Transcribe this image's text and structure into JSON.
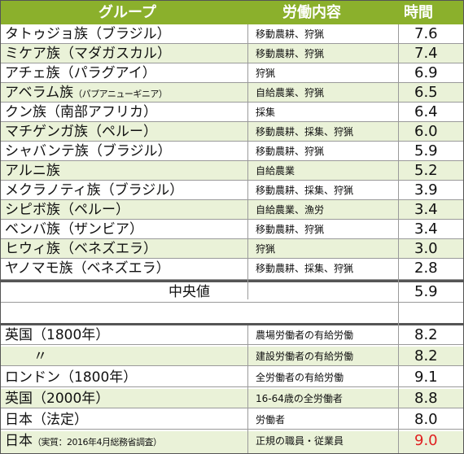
{
  "header": {
    "col1": "グループ",
    "col2": "労働内容",
    "col3": "時間"
  },
  "groups": [
    {
      "name": "タトゥジョ族（ブラジル）",
      "work": "移動農耕、狩猟",
      "hours": "7.6"
    },
    {
      "name": "ミケア族（マダガスカル）",
      "work": "移動農耕、狩猟",
      "hours": "7.4"
    },
    {
      "name": "アチェ族（パラグアイ）",
      "work": "狩猟",
      "hours": "6.9"
    },
    {
      "name": "アベラム族",
      "name_note": "（パプアニューギニア）",
      "work": "自給農業、狩猟",
      "hours": "6.5"
    },
    {
      "name": "クン族（南部アフリカ）",
      "work": "採集",
      "hours": "6.4"
    },
    {
      "name": "マチゲンガ族（ペルー）",
      "work": "移動農耕、採集、狩猟",
      "hours": "6.0"
    },
    {
      "name": "シャバンテ族（ブラジル）",
      "work": "移動農耕、狩猟",
      "hours": "5.9"
    },
    {
      "name": "アルニ族",
      "work": "自給農業",
      "hours": "5.2"
    },
    {
      "name": "メクラノティ族（ブラジル）",
      "work": "移動農耕、採集、狩猟",
      "hours": "3.9"
    },
    {
      "name": "シピボ族（ペルー）",
      "work": "自給農業、漁労",
      "hours": "3.4"
    },
    {
      "name": "ベンバ族（ザンビア）",
      "work": "移動農耕、狩猟",
      "hours": "3.4"
    },
    {
      "name": "ヒウィ族（ベネズエラ）",
      "work": "狩猟",
      "hours": "3.0"
    },
    {
      "name": "ヤノマモ族（ベネズエラ）",
      "work": "移動農耕、採集、狩猟",
      "hours": "2.8"
    }
  ],
  "median": {
    "label": "中央値",
    "hours": "5.9"
  },
  "modern": [
    {
      "name": "英国（1800年）",
      "work": "農場労働者の有給労働",
      "hours": "8.2"
    },
    {
      "name": "〃",
      "work": "建設労働者の有給労働",
      "hours": "8.2"
    },
    {
      "name": "ロンドン（1800年）",
      "work": "全労働者の有給労働",
      "hours": "9.1"
    },
    {
      "name": "英国（2000年）",
      "work": "16-64歳の全労働者",
      "hours": "8.8"
    },
    {
      "name": "日本（法定）",
      "work": "労働者",
      "hours": "8.0"
    },
    {
      "name": "日本",
      "name_note": "（実質：2016年4月総務省調査）",
      "work": "正規の職員・従業員",
      "hours": "9.0"
    }
  ],
  "colors": {
    "header_bg": "#8bb02c",
    "alt_row_bg": "#eaf2d8",
    "highlight": "#e02020"
  }
}
